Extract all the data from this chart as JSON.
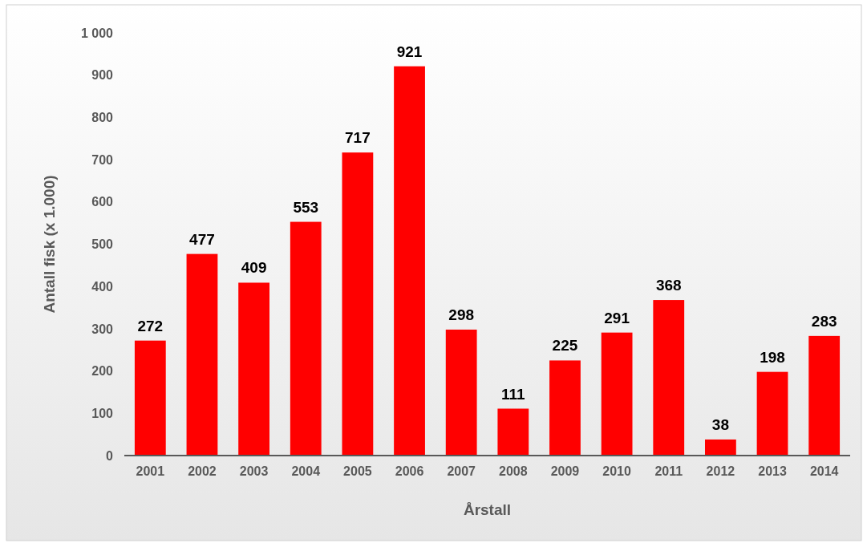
{
  "chart_data": {
    "type": "bar",
    "xlabel": "Årstall",
    "ylabel": "Antall fisk (x 1.000)",
    "categories": [
      "2001",
      "2002",
      "2003",
      "2004",
      "2005",
      "2006",
      "2007",
      "2008",
      "2009",
      "2010",
      "2011",
      "2012",
      "2013",
      "2014"
    ],
    "values": [
      272,
      477,
      409,
      553,
      717,
      921,
      298,
      111,
      225,
      291,
      368,
      38,
      198,
      283
    ],
    "color": "#ff0000",
    "ylim": [
      0,
      1000
    ],
    "yticks": [
      0,
      100,
      200,
      300,
      400,
      500,
      600,
      700,
      800,
      900,
      {
        "value": 1000,
        "label": "1 000"
      }
    ],
    "data_labels": true,
    "grid": false
  }
}
